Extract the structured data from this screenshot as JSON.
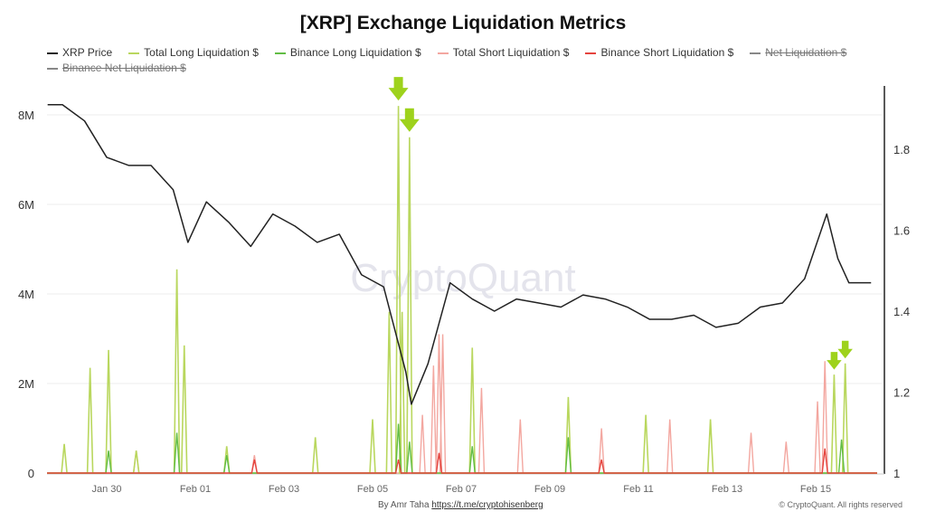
{
  "chart_data": {
    "type": "line",
    "title": "[XRP] Exchange Liquidation Metrics",
    "legend": [
      {
        "name": "XRP Price",
        "color": "#222222",
        "hidden": false
      },
      {
        "name": "Total Long Liquidation $",
        "color": "#b9d75e",
        "hidden": false
      },
      {
        "name": "Binance Long Liquidation $",
        "color": "#62bd45",
        "hidden": false
      },
      {
        "name": "Total Short Liquidation $",
        "color": "#f3a7a0",
        "hidden": false
      },
      {
        "name": "Binance Short Liquidation $",
        "color": "#e5443e",
        "hidden": false
      },
      {
        "name": "Net Liquidation $",
        "color": "#888888",
        "hidden": true
      },
      {
        "name": "Binance Net Liquidation $",
        "color": "#888888",
        "hidden": true
      }
    ],
    "legend_position": "top",
    "x_ticks": [
      "Jan 30",
      "Feb 01",
      "Feb 03",
      "Feb 05",
      "Feb 07",
      "Feb 09",
      "Feb 11",
      "Feb 13",
      "Feb 15"
    ],
    "x_range": [
      "Jan 28 16:00",
      "Feb 16 12:00"
    ],
    "y_left": {
      "ticks": [
        "0",
        "2M",
        "4M",
        "6M",
        "8M"
      ],
      "range": [
        0,
        8600000
      ]
    },
    "y_right": {
      "ticks": [
        "1",
        "1.2",
        "1.4",
        "1.6",
        "1.8"
      ],
      "range": [
        1,
        1.96
      ]
    },
    "grid": true,
    "price": [
      [
        "Jan 28 16:00",
        1.91
      ],
      [
        "Jan 29 00:00",
        1.91
      ],
      [
        "Jan 29 12:00",
        1.87
      ],
      [
        "Jan 30 00:00",
        1.78
      ],
      [
        "Jan 30 12:00",
        1.76
      ],
      [
        "Jan 31 00:00",
        1.76
      ],
      [
        "Jan 31 12:00",
        1.7
      ],
      [
        "Jan 31 20:00",
        1.57
      ],
      [
        "Feb 01 06:00",
        1.67
      ],
      [
        "Feb 01 18:00",
        1.62
      ],
      [
        "Feb 02 06:00",
        1.56
      ],
      [
        "Feb 02 18:00",
        1.64
      ],
      [
        "Feb 03 06:00",
        1.61
      ],
      [
        "Feb 03 18:00",
        1.57
      ],
      [
        "Feb 04 06:00",
        1.59
      ],
      [
        "Feb 04 18:00",
        1.49
      ],
      [
        "Feb 05 06:00",
        1.46
      ],
      [
        "Feb 05 18:00",
        1.25
      ],
      [
        "Feb 05 21:00",
        1.17
      ],
      [
        "Feb 06 06:00",
        1.27
      ],
      [
        "Feb 06 18:00",
        1.47
      ],
      [
        "Feb 07 06:00",
        1.43
      ],
      [
        "Feb 07 18:00",
        1.4
      ],
      [
        "Feb 08 06:00",
        1.43
      ],
      [
        "Feb 08 18:00",
        1.42
      ],
      [
        "Feb 09 06:00",
        1.41
      ],
      [
        "Feb 09 18:00",
        1.44
      ],
      [
        "Feb 10 06:00",
        1.43
      ],
      [
        "Feb 10 18:00",
        1.41
      ],
      [
        "Feb 11 06:00",
        1.38
      ],
      [
        "Feb 11 18:00",
        1.38
      ],
      [
        "Feb 12 06:00",
        1.39
      ],
      [
        "Feb 12 18:00",
        1.36
      ],
      [
        "Feb 13 06:00",
        1.37
      ],
      [
        "Feb 13 18:00",
        1.41
      ],
      [
        "Feb 14 06:00",
        1.42
      ],
      [
        "Feb 14 18:00",
        1.48
      ],
      [
        "Feb 15 06:00",
        1.64
      ],
      [
        "Feb 15 12:00",
        1.53
      ],
      [
        "Feb 15 18:00",
        1.47
      ],
      [
        "Feb 16 06:00",
        1.47
      ]
    ],
    "total_long": [
      [
        "Jan 29 01:00",
        650000
      ],
      [
        "Jan 29 15:00",
        2350000
      ],
      [
        "Jan 30 01:00",
        2750000
      ],
      [
        "Jan 30 16:00",
        500000
      ],
      [
        "Jan 31 14:00",
        4550000
      ],
      [
        "Jan 31 18:00",
        2850000
      ],
      [
        "Feb 01 17:00",
        600000
      ],
      [
        "Feb 03 17:00",
        800000
      ],
      [
        "Feb 05 00:00",
        1200000
      ],
      [
        "Feb 05 09:00",
        3600000
      ],
      [
        "Feb 05 14:00",
        8200000
      ],
      [
        "Feb 05 16:00",
        3600000
      ],
      [
        "Feb 05 20:00",
        7500000
      ],
      [
        "Feb 07 06:00",
        2800000
      ],
      [
        "Feb 09 10:00",
        1700000
      ],
      [
        "Feb 11 04:00",
        1300000
      ],
      [
        "Feb 12 15:00",
        1200000
      ],
      [
        "Feb 15 10:00",
        2200000
      ],
      [
        "Feb 15 16:00",
        2450000
      ]
    ],
    "binance_long": [
      [
        "Jan 30 01:00",
        500000
      ],
      [
        "Jan 31 14:00",
        900000
      ],
      [
        "Feb 01 17:00",
        400000
      ],
      [
        "Feb 05 14:00",
        1100000
      ],
      [
        "Feb 05 20:00",
        700000
      ],
      [
        "Feb 07 06:00",
        600000
      ],
      [
        "Feb 09 10:00",
        800000
      ],
      [
        "Feb 15 14:00",
        750000
      ]
    ],
    "total_short": [
      [
        "Jan 30 16:00",
        500000
      ],
      [
        "Feb 02 08:00",
        400000
      ],
      [
        "Feb 06 03:00",
        1300000
      ],
      [
        "Feb 06 09:00",
        2400000
      ],
      [
        "Feb 06 12:00",
        3100000
      ],
      [
        "Feb 06 14:00",
        3100000
      ],
      [
        "Feb 07 11:00",
        1900000
      ],
      [
        "Feb 08 08:00",
        1200000
      ],
      [
        "Feb 10 04:00",
        1000000
      ],
      [
        "Feb 11 17:00",
        1200000
      ],
      [
        "Feb 13 13:00",
        900000
      ],
      [
        "Feb 14 08:00",
        700000
      ],
      [
        "Feb 15 01:00",
        1600000
      ],
      [
        "Feb 15 05:00",
        2500000
      ]
    ],
    "binance_short": [
      [
        "Feb 02 08:00",
        300000
      ],
      [
        "Feb 05 14:00",
        300000
      ],
      [
        "Feb 06 12:00",
        450000
      ],
      [
        "Feb 10 04:00",
        300000
      ],
      [
        "Feb 15 05:00",
        550000
      ]
    ],
    "annotations": [
      {
        "type": "arrow",
        "at": "Feb 05 14:00",
        "value": 8200000
      },
      {
        "type": "arrow",
        "at": "Feb 05 20:00",
        "value": 7500000
      },
      {
        "type": "arrow",
        "at": "Feb 15 10:00",
        "value": 2200000
      },
      {
        "type": "arrow",
        "at": "Feb 15 16:00",
        "value": 2450000
      }
    ],
    "arrow_color": "#9ed21c",
    "watermark": "CryptoQuant"
  },
  "footer": {
    "author": "By Amr Taha",
    "link": "https://t.me/cryptohisenberg",
    "copyright": "© CryptoQuant. All rights reserved"
  }
}
